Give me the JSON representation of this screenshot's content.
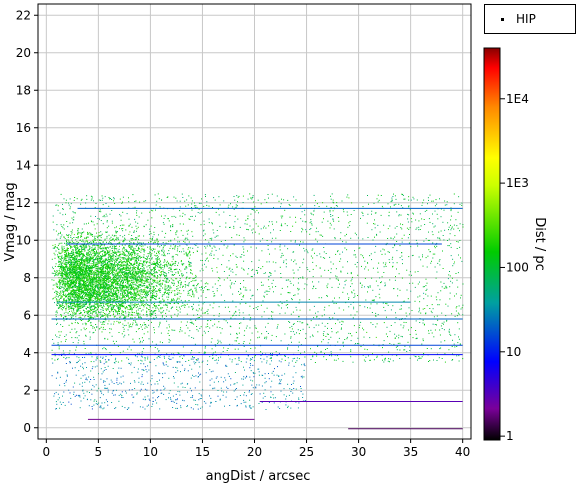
{
  "chart_data": {
    "type": "scatter",
    "xlabel": "angDist / arcsec",
    "ylabel": "Vmag / mag",
    "xlim": [
      -0.8,
      40.8
    ],
    "ylim": [
      -0.6,
      22.6
    ],
    "xticks": [
      0,
      5,
      10,
      15,
      20,
      25,
      30,
      35,
      40
    ],
    "yticks": [
      0,
      2,
      4,
      6,
      8,
      10,
      12,
      14,
      16,
      18,
      20,
      22
    ],
    "grid": true,
    "legend": {
      "placement": "top-right-outside",
      "entries": [
        "HIP"
      ]
    },
    "colorbar": {
      "label": "Dist / pc",
      "scale": "log",
      "range": [
        0.9,
        40000
      ],
      "ticks": [
        {
          "value": 1,
          "label": "1"
        },
        {
          "value": 10,
          "label": "10"
        },
        {
          "value": 100,
          "label": "100"
        },
        {
          "value": 1000,
          "label": "1E3"
        },
        {
          "value": 10000,
          "label": "1E4"
        }
      ]
    },
    "series": [
      {
        "name": "HIP",
        "density_regions": [
          {
            "x_range": [
              0.5,
              21
            ],
            "y_range": [
              4.5,
              11.5
            ],
            "typical_dist_pc": 150
          },
          {
            "x_range": [
              0.5,
              40
            ],
            "y_range": [
              3.5,
              12.5
            ],
            "typical_dist_pc": 100
          },
          {
            "x_range": [
              0.5,
              25
            ],
            "y_range": [
              1.0,
              4.0
            ],
            "typical_dist_pc": 30
          }
        ],
        "horizontal_bands": [
          {
            "x_range": [
              0.5,
              40
            ],
            "y": 3.9,
            "dist_pc": 8
          },
          {
            "x_range": [
              0.5,
              40
            ],
            "y": 4.4,
            "dist_pc": 15
          },
          {
            "x_range": [
              0.5,
              40
            ],
            "y": 5.8,
            "dist_pc": 20
          },
          {
            "x_range": [
              1,
              35
            ],
            "y": 6.7,
            "dist_pc": 30
          },
          {
            "x_range": [
              2,
              38
            ],
            "y": 9.8,
            "dist_pc": 15
          },
          {
            "x_range": [
              3,
              40
            ],
            "y": 11.7,
            "dist_pc": 20
          },
          {
            "x_range": [
              20.5,
              40
            ],
            "y": 1.4,
            "dist_pc": 3
          },
          {
            "x_range": [
              4,
              20
            ],
            "y": 0.45,
            "dist_pc": 2
          },
          {
            "x_range": [
              29,
              40
            ],
            "y": -0.05,
            "dist_pc": 1.5
          }
        ]
      }
    ]
  }
}
